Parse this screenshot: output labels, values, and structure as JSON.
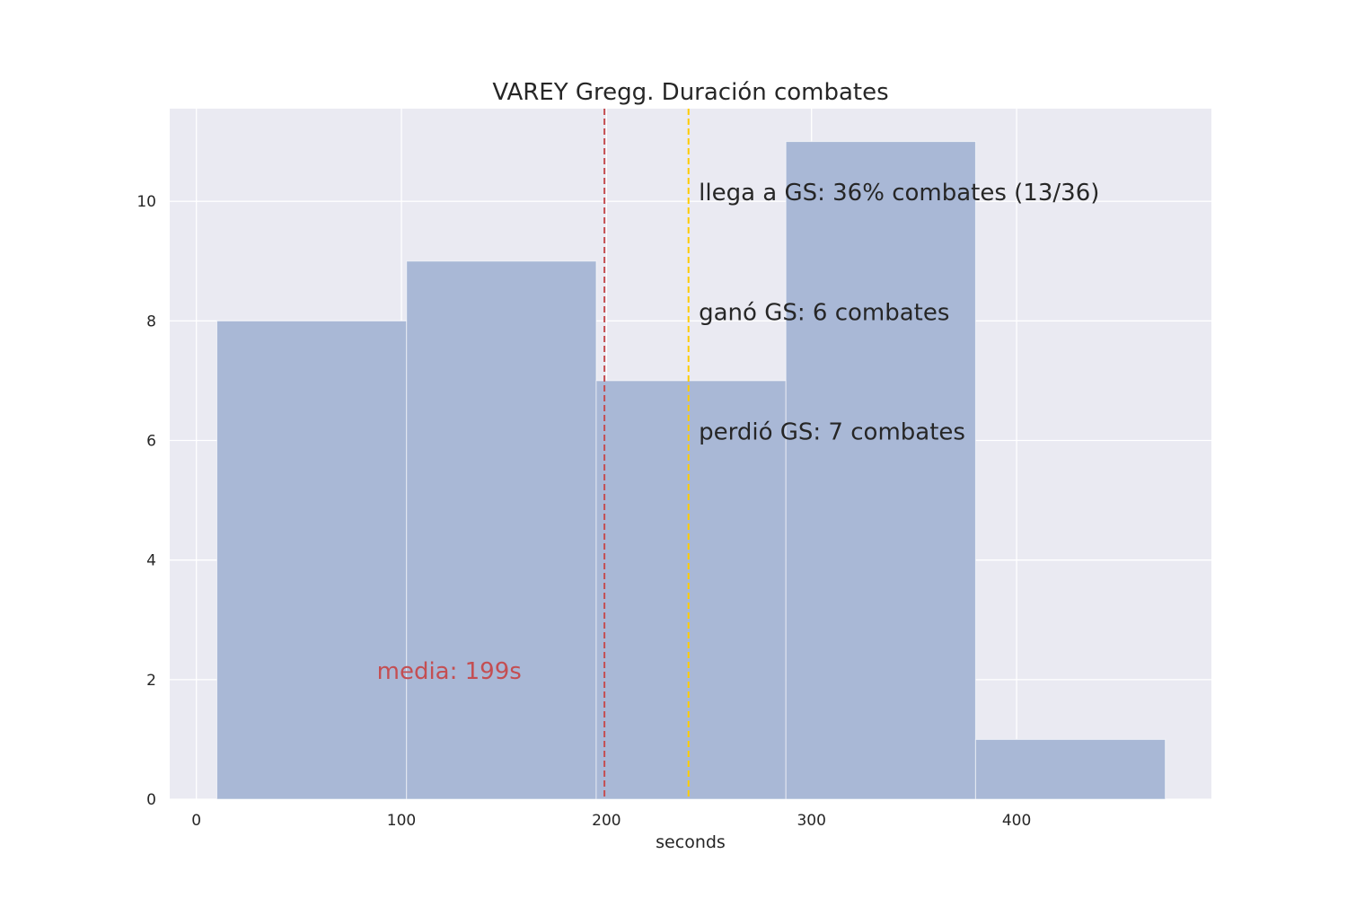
{
  "chart_data": {
    "type": "bar",
    "title": "VAREY Gregg. Duración combates",
    "xlabel": "seconds",
    "ylabel": "",
    "xlim": [
      -13,
      495
    ],
    "ylim": [
      0,
      11.55
    ],
    "x_ticks": [
      0,
      100,
      200,
      300,
      400
    ],
    "y_ticks": [
      0,
      2,
      4,
      6,
      8,
      10
    ],
    "grid": true,
    "bins": [
      {
        "start": 10,
        "end": 102.5,
        "count": 8
      },
      {
        "start": 102.5,
        "end": 195,
        "count": 9
      },
      {
        "start": 195,
        "end": 287.5,
        "count": 7
      },
      {
        "start": 287.5,
        "end": 380,
        "count": 11
      },
      {
        "start": 380,
        "end": 472.5,
        "count": 1
      }
    ],
    "lines": [
      {
        "name": "media",
        "x": 199,
        "color": "#c44e52",
        "style": "dashed"
      },
      {
        "name": "GS",
        "x": 240,
        "color": "#ffcc00",
        "style": "dashed"
      }
    ],
    "annotations": [
      {
        "text": "llega a GS: 36% combates (13/36)",
        "x": 245,
        "y": 10
      },
      {
        "text": "ganó GS: 6 combates",
        "x": 245,
        "y": 8
      },
      {
        "text": "perdió GS: 7 combates",
        "x": 245,
        "y": 6
      }
    ],
    "mean_label": {
      "text": "media: 199s",
      "x": 88,
      "y": 2,
      "color": "#c44e52"
    }
  },
  "colors": {
    "plot_background": "#eaeaf2",
    "grid": "#ffffff",
    "bar_fill": "#a9b8d6",
    "bar_edge": "#ffffff"
  }
}
